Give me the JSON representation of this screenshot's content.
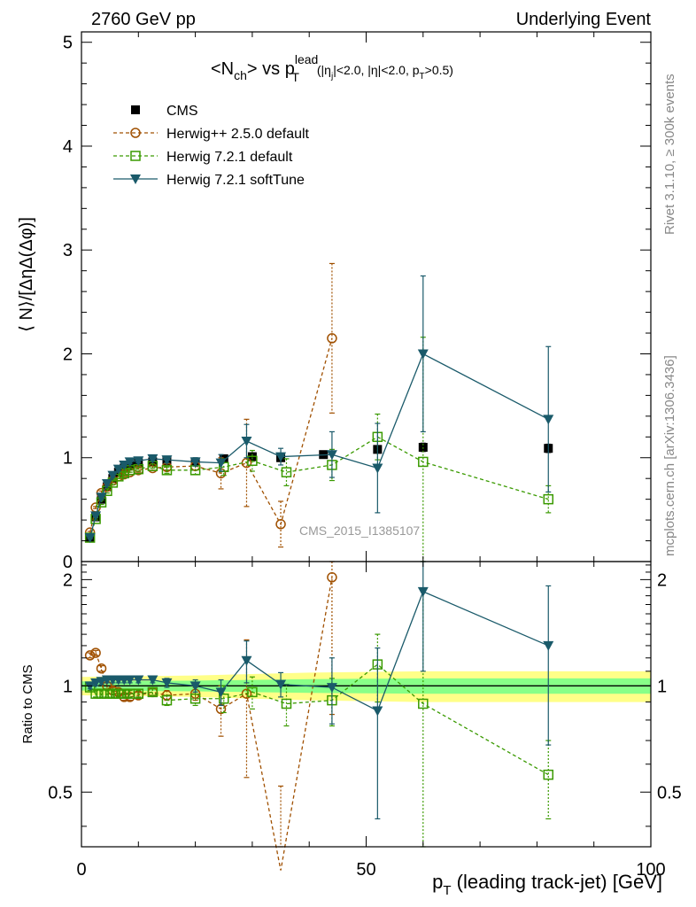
{
  "header": {
    "left": "2760 GeV pp",
    "right": "Underlying Event"
  },
  "side_labels": {
    "rivet": "Rivet 3.1.10, ≥ 300k events",
    "mcplots": "mcplots.cern.ch [arXiv:1306.3436]"
  },
  "watermark": "CMS_2015_I1385107",
  "title": {
    "main": "<N",
    "sub_ch": "ch",
    "vs": "> vs p",
    "sup_lead": "lead",
    "sub_T": "T",
    "cuts_a": "(|η",
    "cuts_j": "j",
    "cuts_b": "|<2.0, |η|<2.0, p",
    "cuts_T": "T",
    "cuts_c": ">0.5)"
  },
  "colors": {
    "cms": "#000000",
    "herwigpp": "#a05000",
    "herwig721": "#3a9a00",
    "softtune": "#1a5a6a",
    "band_yellow": "#ffff88",
    "band_green": "#88ff88"
  },
  "legend": [
    "CMS",
    "Herwig++ 2.5.0 default",
    "Herwig 7.2.1 default",
    "Herwig 7.2.1 softTune"
  ],
  "chart_data": [
    {
      "type": "scatter",
      "panel": "main",
      "title": "<Nch> vs pT lead (|ηj|<2.0, |η|<2.0, pT>0.5)",
      "xlabel": "pT (leading track-jet) [GeV]",
      "ylabel": "⟨ N⟩/[ΔηΔ(Δφ)]",
      "xlim": [
        0,
        100
      ],
      "ylim": [
        0,
        5.1
      ],
      "x_ticks": [
        "0",
        "50",
        "100"
      ],
      "y_ticks": [
        "0",
        "1",
        "2",
        "3",
        "4",
        "5"
      ],
      "series": [
        {
          "name": "CMS",
          "marker": "square-filled",
          "x": [
            1.5,
            2.5,
            3.5,
            4.5,
            5.5,
            6.5,
            7.5,
            8.5,
            10,
            12.5,
            15,
            20,
            25,
            30,
            35,
            42.5,
            52,
            60,
            82
          ],
          "y": [
            0.23,
            0.43,
            0.6,
            0.72,
            0.8,
            0.86,
            0.9,
            0.93,
            0.95,
            0.96,
            0.97,
            0.96,
            0.99,
            1.01,
            1.0,
            1.03,
            1.08,
            1.1,
            1.09
          ],
          "err": [
            0.01,
            0.01,
            0.01,
            0.01,
            0.01,
            0.01,
            0.01,
            0.01,
            0.01,
            0.01,
            0.01,
            0.01,
            0.02,
            0.02,
            0.02,
            0.03,
            0.03,
            0.04,
            0.04
          ]
        },
        {
          "name": "Herwig++ 2.5.0 default",
          "marker": "circle-open",
          "x": [
            1.5,
            2.5,
            3.5,
            4.5,
            5.5,
            6.5,
            7.5,
            8.5,
            10,
            12.5,
            15,
            20,
            24.5,
            29,
            35,
            44
          ],
          "y": [
            0.28,
            0.52,
            0.66,
            0.72,
            0.78,
            0.82,
            0.84,
            0.86,
            0.88,
            0.9,
            0.91,
            0.92,
            0.85,
            0.95,
            0.36,
            2.15
          ],
          "err": [
            0.01,
            0.01,
            0.02,
            0.02,
            0.02,
            0.02,
            0.02,
            0.02,
            0.02,
            0.02,
            0.03,
            0.04,
            0.15,
            0.42,
            0.22,
            0.72
          ]
        },
        {
          "name": "Herwig 7.2.1 default",
          "marker": "square-open",
          "x": [
            1.5,
            2.5,
            3.5,
            4.5,
            5.5,
            6.5,
            7.5,
            8.5,
            10,
            12.5,
            15,
            20,
            25,
            30,
            36,
            44,
            52,
            60,
            82
          ],
          "y": [
            0.23,
            0.41,
            0.57,
            0.68,
            0.76,
            0.82,
            0.85,
            0.88,
            0.89,
            0.92,
            0.88,
            0.88,
            0.91,
            0.97,
            0.86,
            0.93,
            1.2,
            0.96,
            0.6
          ],
          "err": [
            0.01,
            0.01,
            0.02,
            0.02,
            0.02,
            0.02,
            0.02,
            0.02,
            0.02,
            0.02,
            0.03,
            0.04,
            0.08,
            0.1,
            0.13,
            0.15,
            0.22,
            1.2,
            0.13
          ]
        },
        {
          "name": "Herwig 7.2.1 softTune",
          "marker": "triangle-down-filled",
          "x": [
            1.5,
            2.5,
            3.5,
            4.5,
            5.5,
            6.5,
            7.5,
            8.5,
            10,
            12.5,
            15,
            20,
            24.5,
            29,
            35,
            44,
            52,
            60,
            82
          ],
          "y": [
            0.23,
            0.44,
            0.62,
            0.75,
            0.83,
            0.89,
            0.93,
            0.96,
            0.97,
            0.99,
            0.98,
            0.96,
            0.95,
            1.16,
            1.01,
            1.03,
            0.9,
            2.0,
            1.37
          ],
          "err": [
            0.01,
            0.01,
            0.02,
            0.02,
            0.02,
            0.02,
            0.02,
            0.02,
            0.02,
            0.02,
            0.03,
            0.04,
            0.08,
            0.16,
            0.08,
            0.22,
            0.43,
            0.75,
            0.7
          ]
        }
      ]
    },
    {
      "type": "line",
      "panel": "ratio",
      "xlabel": "pT (leading track-jet) [GeV]",
      "ylabel": "Ratio to CMS",
      "xlim": [
        0,
        100
      ],
      "ylim": [
        0.35,
        2.25
      ],
      "y_ticks": [
        "0.5",
        "1",
        "2"
      ],
      "series": [
        {
          "name": "Herwig++ 2.5.0 default",
          "x": [
            1.5,
            2.5,
            3.5,
            4.5,
            5.5,
            6.5,
            7.5,
            8.5,
            10,
            12.5,
            15,
            20,
            24.5,
            29,
            35,
            44
          ],
          "y": [
            1.22,
            1.24,
            1.12,
            1.0,
            0.97,
            0.96,
            0.93,
            0.93,
            0.94,
            0.96,
            0.94,
            0.95,
            0.86,
            0.95,
            0.3,
            2.03
          ],
          "err": [
            0.02,
            0.02,
            0.02,
            0.02,
            0.02,
            0.02,
            0.02,
            0.02,
            0.02,
            0.02,
            0.03,
            0.04,
            0.14,
            0.4,
            0.22,
            1.2
          ]
        },
        {
          "name": "Herwig 7.2.1 default",
          "x": [
            1.5,
            2.5,
            3.5,
            4.5,
            5.5,
            6.5,
            7.5,
            8.5,
            10,
            12.5,
            15,
            20,
            25,
            30,
            36,
            44,
            52,
            60,
            82
          ],
          "y": [
            0.99,
            0.95,
            0.95,
            0.95,
            0.95,
            0.95,
            0.95,
            0.95,
            0.95,
            0.96,
            0.91,
            0.92,
            0.92,
            0.96,
            0.89,
            0.91,
            1.15,
            0.89,
            0.56
          ],
          "err": [
            0.02,
            0.02,
            0.02,
            0.02,
            0.02,
            0.02,
            0.02,
            0.02,
            0.02,
            0.02,
            0.03,
            0.04,
            0.08,
            0.1,
            0.12,
            0.14,
            0.25,
            1.0,
            0.14
          ]
        },
        {
          "name": "Herwig 7.2.1 softTune",
          "x": [
            1.5,
            2.5,
            3.5,
            4.5,
            5.5,
            6.5,
            7.5,
            8.5,
            10,
            12.5,
            15,
            20,
            24.5,
            29,
            35,
            44,
            52,
            60,
            82
          ],
          "y": [
            1.0,
            1.02,
            1.03,
            1.04,
            1.04,
            1.04,
            1.04,
            1.04,
            1.04,
            1.04,
            1.02,
            1.0,
            0.96,
            1.18,
            1.01,
            0.99,
            0.85,
            1.85,
            1.3
          ],
          "err": [
            0.02,
            0.02,
            0.02,
            0.02,
            0.02,
            0.02,
            0.02,
            0.02,
            0.02,
            0.02,
            0.03,
            0.04,
            0.08,
            0.16,
            0.08,
            0.21,
            0.43,
            0.75,
            0.62
          ]
        }
      ]
    }
  ],
  "axis_labels": {
    "main_ylabel": "⟨ N⟩/[ΔηΔ(Δφ)]",
    "ratio_ylabel": "Ratio to CMS",
    "xlabel_p": "p",
    "xlabel_T": "T",
    "xlabel_rest": " (leading track-jet) [GeV]"
  }
}
